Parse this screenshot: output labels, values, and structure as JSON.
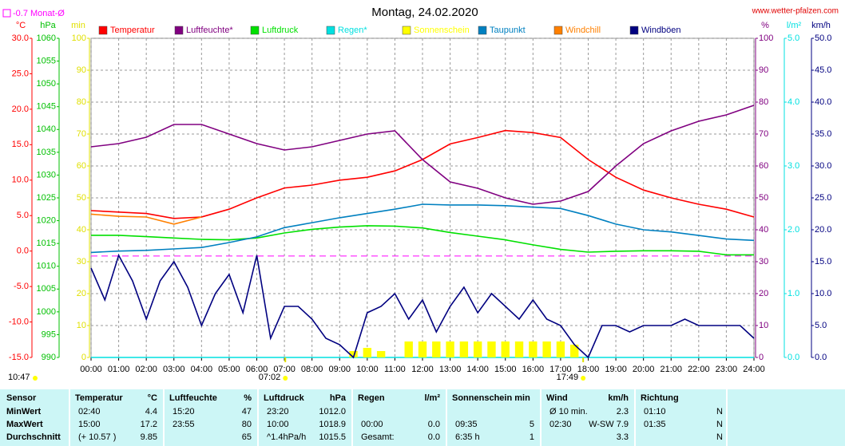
{
  "chart_data": {
    "type": "line",
    "title": "Montag, 24.02.2020",
    "source": "www.wetter-pfalzen.com",
    "monthly_avg": {
      "label": "-0.7 Monat-Ø",
      "value": -0.7,
      "color": "#ff00ff",
      "axis": "temp"
    },
    "xlim": [
      0,
      24
    ],
    "xticks": [
      {
        "value": 0,
        "label": "00:00"
      },
      {
        "value": 1,
        "label": "01:00"
      },
      {
        "value": 2,
        "label": "02:00"
      },
      {
        "value": 3,
        "label": "03:00"
      },
      {
        "value": 4,
        "label": "04:00"
      },
      {
        "value": 5,
        "label": "05:00"
      },
      {
        "value": 6,
        "label": "06:00"
      },
      {
        "value": 7,
        "label": "07:00"
      },
      {
        "value": 8,
        "label": "08:00"
      },
      {
        "value": 9,
        "label": "09:00"
      },
      {
        "value": 10,
        "label": "10:00"
      },
      {
        "value": 11,
        "label": "11:00"
      },
      {
        "value": 12,
        "label": "12:00"
      },
      {
        "value": 13,
        "label": "13:00"
      },
      {
        "value": 14,
        "label": "14:00"
      },
      {
        "value": 15,
        "label": "15:00"
      },
      {
        "value": 16,
        "label": "16:00"
      },
      {
        "value": 17,
        "label": "17:00"
      },
      {
        "value": 18,
        "label": "18:00"
      },
      {
        "value": 19,
        "label": "19:00"
      },
      {
        "value": 20,
        "label": "20:00"
      },
      {
        "value": 21,
        "label": "21:00"
      },
      {
        "value": 22,
        "label": "22:00"
      },
      {
        "value": 23,
        "label": "23:00"
      },
      {
        "value": 24,
        "label": "24:00"
      }
    ],
    "x": [
      0,
      1,
      2,
      3,
      4,
      5,
      6,
      7,
      8,
      9,
      10,
      11,
      12,
      13,
      14,
      15,
      16,
      17,
      18,
      19,
      20,
      21,
      22,
      23,
      24
    ],
    "grid": true,
    "axes": {
      "temp": {
        "unit": "°C",
        "side": "left",
        "color": "#ff0000",
        "lim": [
          -15,
          30
        ],
        "ticks": [
          {
            "value": -15,
            "label": "-15.0"
          },
          {
            "value": -10,
            "label": "-10.0"
          },
          {
            "value": -5,
            "label": "-5.0"
          },
          {
            "value": 0,
            "label": "0.0"
          },
          {
            "value": 5,
            "label": "5.0"
          },
          {
            "value": 10,
            "label": "10.0"
          },
          {
            "value": 15,
            "label": "15.0"
          },
          {
            "value": 20,
            "label": "20.0"
          },
          {
            "value": 25,
            "label": "25.0"
          },
          {
            "value": 30,
            "label": "30.0"
          }
        ]
      },
      "hpa": {
        "unit": "hPa",
        "side": "left",
        "color": "#00c000",
        "lim": [
          990,
          1060
        ],
        "ticks": [
          990,
          995,
          1000,
          1005,
          1010,
          1015,
          1020,
          1025,
          1030,
          1035,
          1040,
          1045,
          1050,
          1055,
          1060
        ]
      },
      "min": {
        "unit": "min",
        "side": "left",
        "color": "#e0e000",
        "lim": [
          0,
          100
        ],
        "ticks": [
          0,
          10,
          20,
          30,
          40,
          50,
          60,
          70,
          80,
          90,
          100
        ]
      },
      "pct": {
        "unit": "%",
        "side": "right",
        "color": "#800080",
        "lim": [
          0,
          100
        ],
        "ticks": [
          0,
          10,
          20,
          30,
          40,
          50,
          60,
          70,
          80,
          90,
          100
        ]
      },
      "rain": {
        "unit": "l/m²",
        "side": "right",
        "color": "#00e0e0",
        "lim": [
          0,
          5
        ],
        "ticks": [
          {
            "value": 0,
            "label": "0.0"
          },
          {
            "value": 1,
            "label": "1.0"
          },
          {
            "value": 2,
            "label": "2.0"
          },
          {
            "value": 3,
            "label": "3.0"
          },
          {
            "value": 4,
            "label": "4.0"
          },
          {
            "value": 5,
            "label": "5.0"
          }
        ]
      },
      "kmh": {
        "unit": "km/h",
        "side": "right",
        "color": "#000080",
        "lim": [
          0,
          50
        ],
        "ticks": [
          {
            "value": 0,
            "label": "0.0"
          },
          {
            "value": 5,
            "label": "5.0"
          },
          {
            "value": 10,
            "label": "10.0"
          },
          {
            "value": 15,
            "label": "15.0"
          },
          {
            "value": 20,
            "label": "20.0"
          },
          {
            "value": 25,
            "label": "25.0"
          },
          {
            "value": 30,
            "label": "30.0"
          },
          {
            "value": 35,
            "label": "35.0"
          },
          {
            "value": 40,
            "label": "40.0"
          },
          {
            "value": 45,
            "label": "45.0"
          },
          {
            "value": 50,
            "label": "50.0"
          }
        ]
      }
    },
    "series": [
      {
        "name": "Temperatur",
        "color": "#ff0000",
        "axis": "temp",
        "values": [
          5.7,
          5.5,
          5.3,
          4.6,
          4.8,
          5.9,
          7.5,
          8.9,
          9.3,
          10.0,
          10.4,
          11.3,
          12.9,
          15.1,
          16.0,
          17.0,
          16.7,
          16.0,
          12.9,
          10.4,
          8.6,
          7.5,
          6.6,
          5.9,
          4.8
        ]
      },
      {
        "name": "Luftfeuchte*",
        "color": "#800080",
        "axis": "pct",
        "values": [
          66,
          67,
          69,
          73,
          73,
          70,
          67,
          65,
          66,
          68,
          70,
          71,
          62,
          55,
          53,
          50,
          48,
          49,
          52,
          60,
          67,
          71,
          74,
          76,
          79
        ]
      },
      {
        "name": "Luftdruck",
        "color": "#00e000",
        "axis": "hpa",
        "values": [
          1016.8,
          1016.8,
          1016.5,
          1016.2,
          1015.9,
          1015.8,
          1016.2,
          1017.3,
          1018.1,
          1018.6,
          1018.9,
          1018.8,
          1018.4,
          1017.4,
          1016.6,
          1015.8,
          1014.7,
          1013.7,
          1013.1,
          1013.3,
          1013.4,
          1013.4,
          1013.3,
          1012.5,
          1012.5
        ]
      },
      {
        "name": "Regen*",
        "color": "#00e0e0",
        "axis": "rain",
        "x": [
          0,
          24
        ],
        "values": [
          0,
          0
        ]
      },
      {
        "name": "Sonnenschein",
        "color": "#ffff00",
        "axis": "min",
        "style": "bar",
        "x": [
          9.5,
          10,
          10.5,
          11,
          11.5,
          12,
          12.5,
          13,
          13.5,
          14,
          14.5,
          15,
          15.5,
          16,
          16.5,
          17,
          17.5
        ],
        "values": [
          2,
          3,
          2,
          0,
          5,
          5,
          5,
          5,
          5,
          5,
          5,
          5,
          5,
          5,
          5,
          5,
          4
        ]
      },
      {
        "name": "Taupunkt",
        "color": "#0080c0",
        "axis": "temp",
        "values": [
          -0.2,
          0.0,
          0.1,
          0.3,
          0.5,
          1.2,
          2.0,
          3.3,
          4.0,
          4.7,
          5.3,
          5.9,
          6.6,
          6.5,
          6.5,
          6.4,
          6.2,
          6.0,
          5.0,
          3.8,
          3.0,
          2.7,
          2.2,
          1.7,
          1.5
        ]
      },
      {
        "name": "Windchill",
        "color": "#ff8000",
        "axis": "temp",
        "values": [
          5.2,
          4.9,
          4.8,
          3.8,
          4.8,
          null,
          null,
          null,
          null,
          null,
          null,
          null,
          null,
          null,
          null,
          null,
          null,
          null,
          null,
          null,
          null,
          null,
          null,
          null,
          null
        ]
      },
      {
        "name": "Windböen",
        "color": "#000080",
        "axis": "kmh",
        "x": [
          0,
          0.5,
          1,
          1.5,
          2,
          2.5,
          3,
          3.5,
          4,
          4.5,
          5,
          5.5,
          6,
          6.5,
          7,
          7.5,
          8,
          8.5,
          9,
          9.5,
          10,
          10.5,
          11,
          11.5,
          12,
          12.5,
          13,
          13.5,
          14,
          14.5,
          15,
          15.5,
          16,
          16.5,
          17,
          17.5,
          18,
          18.5,
          19,
          19.5,
          20,
          20.5,
          21,
          21.5,
          22,
          22.5,
          23,
          23.5,
          24
        ],
        "values": [
          14,
          9,
          16,
          12,
          6,
          12,
          15,
          11,
          5,
          10,
          13,
          7,
          16,
          3,
          8,
          8,
          6,
          3,
          2,
          0,
          7,
          8,
          10,
          6,
          9,
          4,
          8,
          11,
          7,
          10,
          8,
          6,
          9,
          6,
          5,
          2,
          0,
          5,
          5,
          4,
          5,
          5,
          5,
          6,
          5,
          5,
          5,
          5,
          3
        ]
      }
    ],
    "annotations": {
      "daylength": {
        "label": "10:47"
      },
      "sunrise": {
        "label": "07:02",
        "value": 7.0333
      },
      "sunset": {
        "label": "17:49",
        "value": 17.8167
      }
    }
  },
  "table": {
    "header": {
      "label": "Sensor",
      "groups": [
        [
          "Temperatur",
          "°C"
        ],
        [
          "Luftfeuchte",
          "%"
        ],
        [
          "Luftdruck",
          "hPa"
        ],
        [
          "Regen",
          "l/m²"
        ],
        [
          "Sonnenschein min",
          null
        ],
        [
          "Wind",
          "km/h"
        ],
        [
          "Richtung",
          null
        ]
      ]
    },
    "rows": [
      {
        "label": "MinWert",
        "cells": [
          [
            "02:40",
            "4.4"
          ],
          [
            "15:20",
            "47"
          ],
          [
            "23:20",
            "1012.0"
          ],
          [
            null,
            null
          ],
          [
            null,
            null
          ],
          [
            "Ø 10 min.",
            "2.3"
          ],
          [
            "01:10",
            "N"
          ]
        ]
      },
      {
        "label": "MaxWert",
        "cells": [
          [
            "15:00",
            "17.2"
          ],
          [
            "23:55",
            "80"
          ],
          [
            "10:00",
            "1018.9"
          ],
          [
            "00:00",
            "0.0"
          ],
          [
            "09:35",
            "5"
          ],
          [
            "02:30",
            "W-SW 7.9"
          ],
          [
            "01:35",
            "N"
          ]
        ]
      },
      {
        "label": "Durchschnitt",
        "cells": [
          [
            "(+ 10.57 )",
            "9.85"
          ],
          [
            null,
            "65"
          ],
          [
            "^1.4hPa/h",
            "1015.5"
          ],
          [
            "Gesamt:",
            "0.0"
          ],
          [
            "6:35 h",
            "1"
          ],
          [
            null,
            "3.3"
          ],
          [
            null,
            "N"
          ]
        ]
      }
    ]
  }
}
